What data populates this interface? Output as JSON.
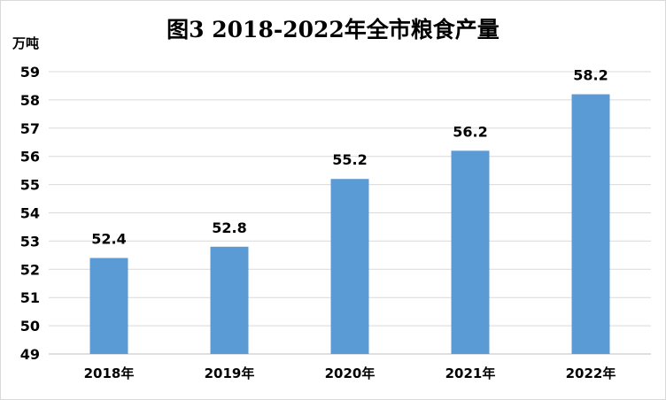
{
  "chart_data": {
    "type": "bar",
    "title": "图3 2018-2022年全市粮食产量",
    "ylabel": "万吨",
    "xlabel": "",
    "categories": [
      "2018年",
      "2019年",
      "2020年",
      "2021年",
      "2022年"
    ],
    "values": [
      52.4,
      52.8,
      55.2,
      56.2,
      58.2
    ],
    "data_labels": [
      "52.4",
      "52.8",
      "55.2",
      "56.2",
      "58.2"
    ],
    "ylim": [
      49,
      59
    ],
    "yticks": [
      "49",
      "50",
      "51",
      "52",
      "53",
      "54",
      "55",
      "56",
      "57",
      "58",
      "59"
    ],
    "grid": true,
    "legend": "none",
    "bar_color": "#5b9bd5",
    "grid_color": "#d9d9d9"
  }
}
